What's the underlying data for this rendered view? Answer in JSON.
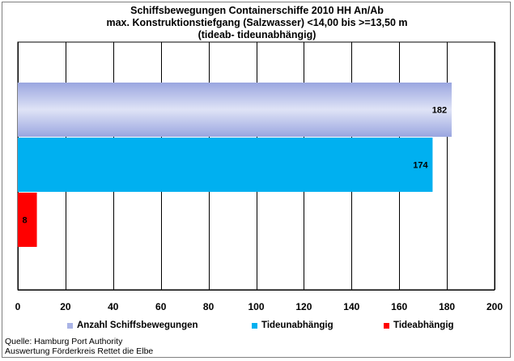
{
  "title_lines": [
    "Schiffsbewegungen  Containerschiffe  2010 HH An/Ab",
    "max. Konstruktionstiefgang  (Salzwasser)  <14,00 bis >=13,50 m",
    "(tideab- tideunabhängig)"
  ],
  "source_lines": [
    "Quelle: Hamburg Port Authority",
    "Auswertung Förderkreis Rettet die Elbe"
  ],
  "chart_data": {
    "type": "bar",
    "orientation": "horizontal",
    "title": "Schiffsbewegungen  Containerschiffe  2010 HH An/Ab max. Konstruktionstiefgang  (Salzwasser)  <14,00 bis >=13,50 m (tideab- tideunabhängig)",
    "xlim": [
      0,
      200
    ],
    "xticks": [
      0,
      20,
      40,
      60,
      80,
      100,
      120,
      140,
      160,
      180,
      200
    ],
    "grid": "vertical",
    "legend_position": "bottom",
    "series": [
      {
        "name": "Anzahl Schiffsbewegungen",
        "value": 182,
        "label": "182",
        "color": "#aab4e6"
      },
      {
        "name": "Tideunabhängig",
        "value": 174,
        "label": "174",
        "color": "#00b0f0"
      },
      {
        "name": "Tideabhängig",
        "value": 8,
        "label": "8",
        "color": "#ff0000"
      }
    ]
  }
}
